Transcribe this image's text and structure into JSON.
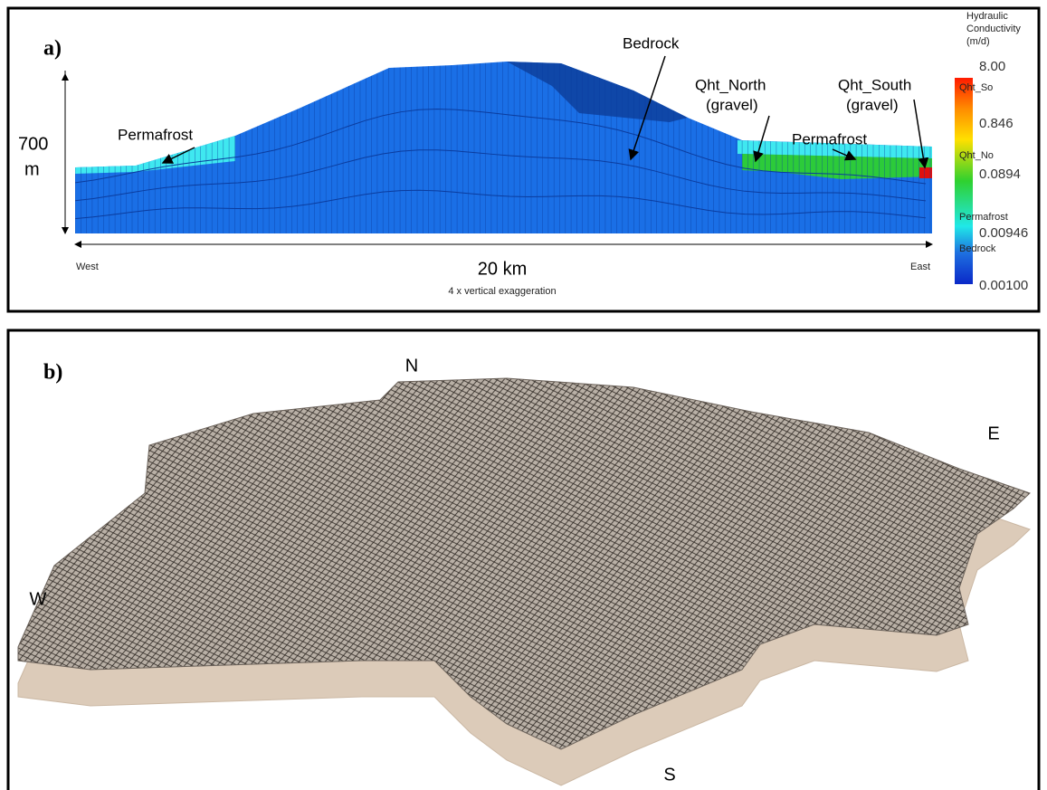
{
  "panel_a": {
    "label": "a)",
    "scale": {
      "height_value": "700",
      "height_unit": "m",
      "west": "West",
      "east": "East",
      "length": "20 km",
      "exaggeration": "4 x vertical exaggeration"
    },
    "annotations": {
      "bedrock": "Bedrock",
      "qht_north": "Qht_North",
      "qht_north_note": "(gravel)",
      "qht_south": "Qht_South",
      "qht_south_note": "(gravel)",
      "permafrost_left": "Permafrost",
      "permafrost_right": "Permafrost"
    },
    "legend": {
      "title": [
        "Hydraulic",
        "Conductivity",
        "(m/d)"
      ],
      "ticks": [
        "8.00",
        "0.846",
        "0.0894",
        "0.00946",
        "0.00100"
      ],
      "classes": [
        "Qht_So",
        "Qht_No",
        "Permafrost",
        "Bedrock"
      ]
    }
  },
  "panel_b": {
    "label": "b)",
    "directions": {
      "north": "N",
      "east": "E",
      "west": "W",
      "south": "S"
    }
  }
}
